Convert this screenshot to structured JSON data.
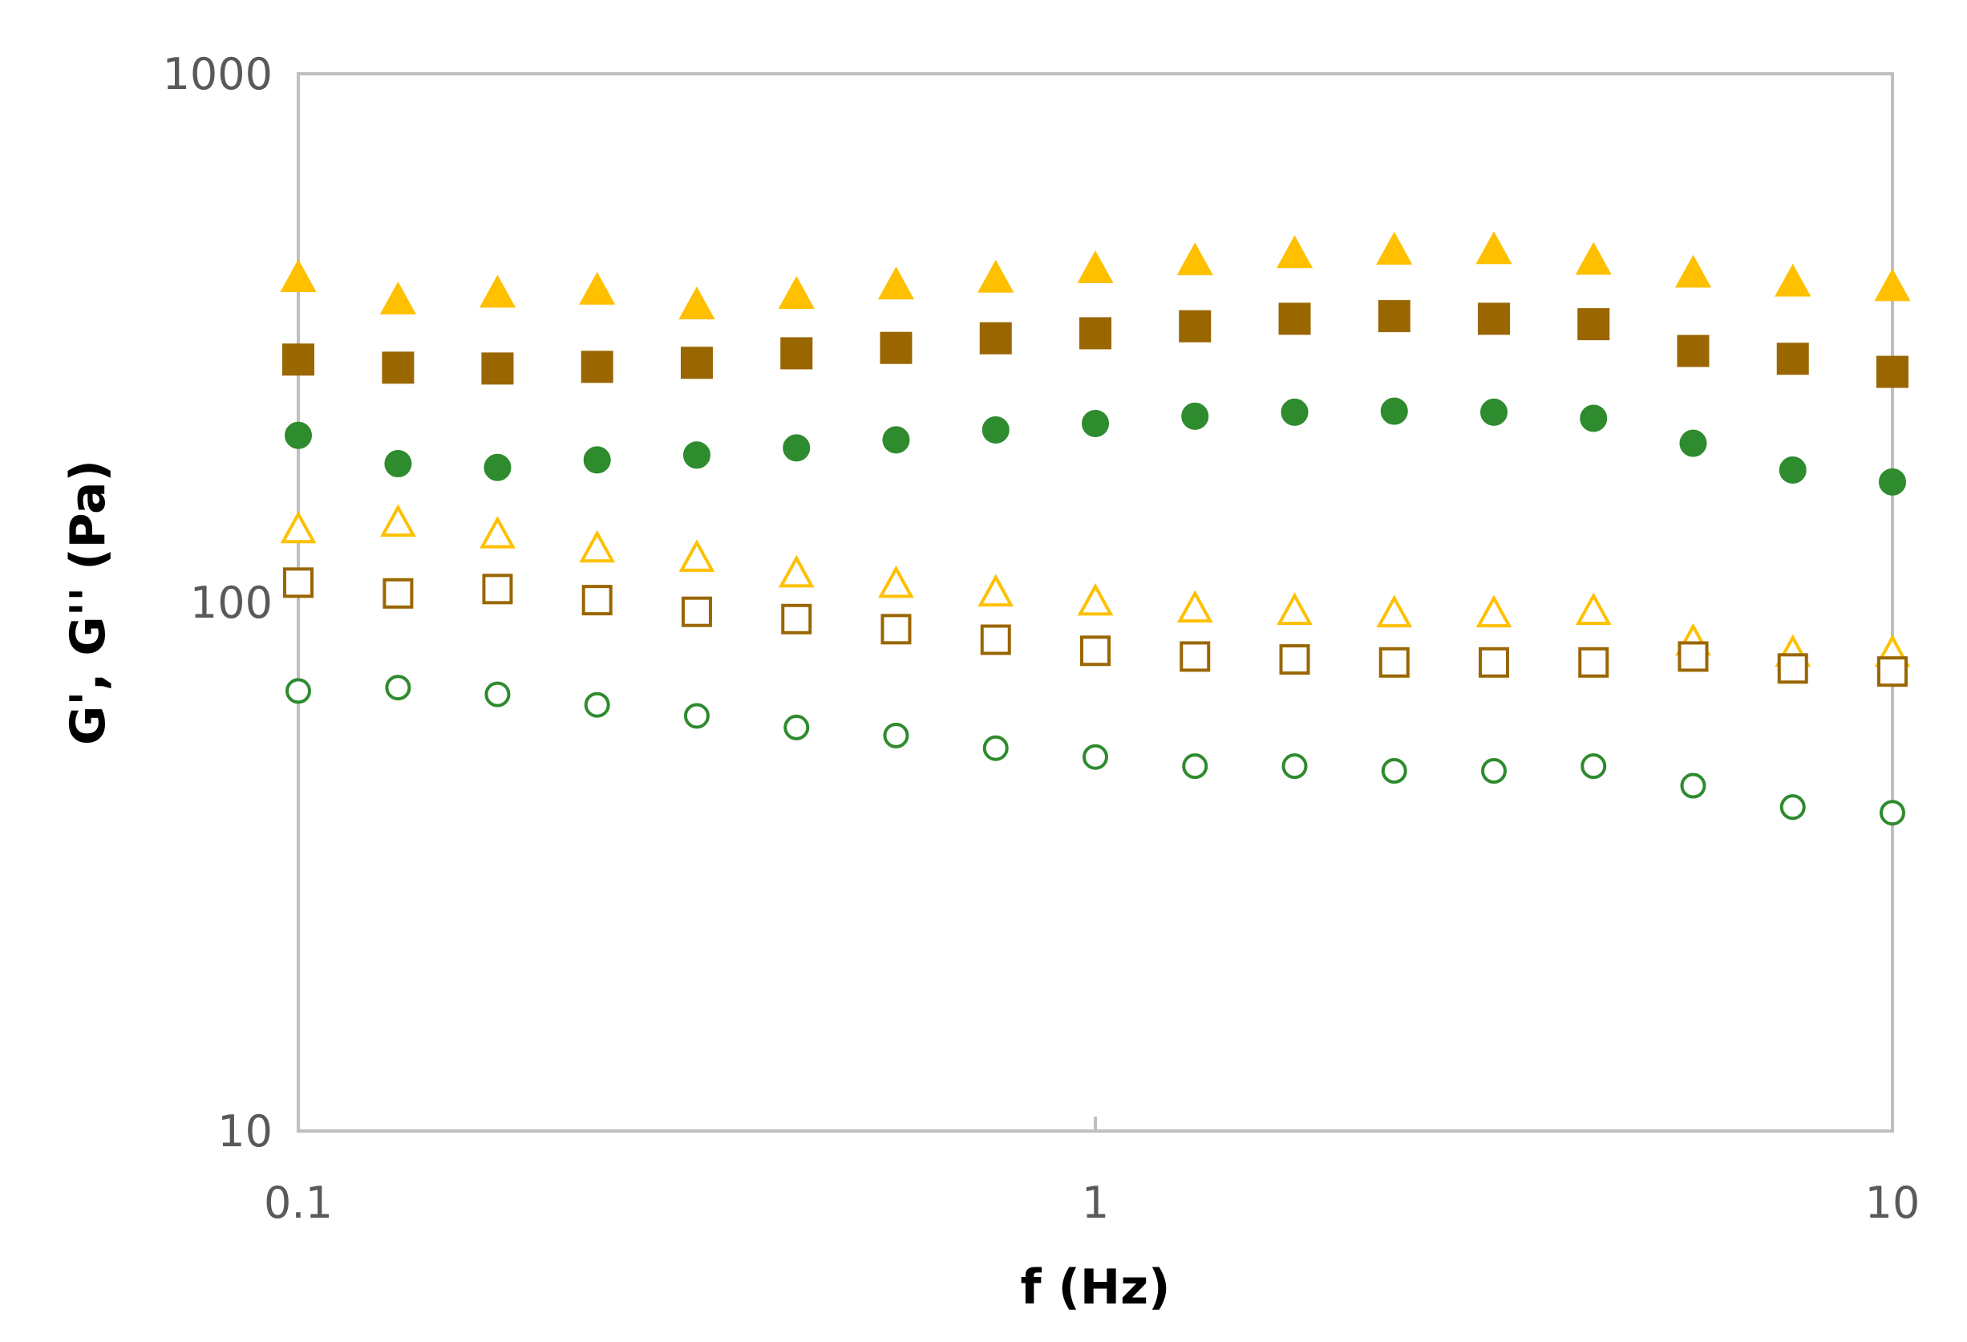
{
  "chart_data": {
    "type": "scatter",
    "title": "",
    "xlabel": "f (Hz)",
    "ylabel": "G', G'' (Pa)",
    "x_scale": "log",
    "y_scale": "log",
    "xlim": [
      0.1,
      10
    ],
    "ylim": [
      10,
      1000
    ],
    "x_ticks": [
      "0.1",
      "1",
      "10"
    ],
    "y_ticks": [
      "10",
      "100",
      "1000"
    ],
    "grid": false,
    "legend": "none",
    "x": [
      0.1,
      0.1334,
      0.1778,
      0.2371,
      0.3162,
      0.4217,
      0.5623,
      0.7499,
      1.0,
      1.3335,
      1.7783,
      2.3714,
      3.1623,
      4.217,
      5.6234,
      7.4989,
      10.0
    ],
    "series": [
      {
        "marker": "triangle-filled",
        "color": "#FFC000",
        "values": [
          410,
          372,
          383,
          388,
          364,
          381,
          397,
          409,
          426,
          441,
          455,
          462,
          463,
          442,
          418,
          402,
          394
        ]
      },
      {
        "marker": "square-filled",
        "color": "#996600",
        "values": [
          288,
          278,
          277,
          279,
          284,
          296,
          303,
          316,
          323,
          333,
          344,
          348,
          344,
          336,
          299,
          289,
          273
        ]
      },
      {
        "marker": "circle-filled",
        "color": "#2E8B2E",
        "values": [
          207,
          183,
          180,
          186,
          190,
          196,
          203,
          212,
          218,
          225,
          229,
          230,
          229,
          223,
          200,
          178,
          169
        ]
      },
      {
        "marker": "triangle-open",
        "color": "#FFC000",
        "values": [
          137,
          141,
          134,
          126,
          121,
          113,
          108,
          104,
          100,
          97,
          96,
          95,
          95,
          96,
          84,
          80,
          80
        ]
      },
      {
        "marker": "square-open",
        "color": "#996600",
        "values": [
          109,
          104,
          106,
          101,
          96,
          93,
          89,
          85,
          81,
          79,
          78,
          77,
          77,
          77,
          79,
          75,
          74
        ]
      },
      {
        "marker": "circle-open",
        "color": "#2E8B2E",
        "values": [
          68,
          69,
          67,
          64,
          61,
          58,
          56,
          53,
          51,
          49,
          49,
          48,
          48,
          49,
          45,
          41,
          40
        ]
      }
    ]
  }
}
